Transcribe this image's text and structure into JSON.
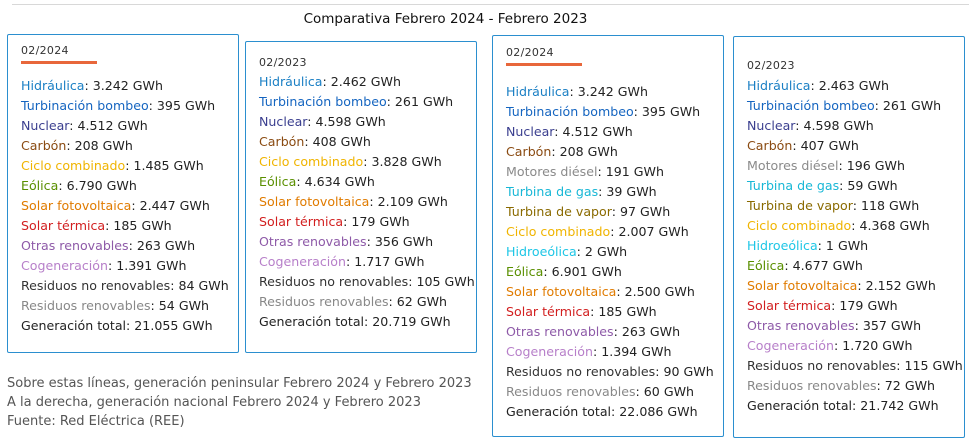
{
  "title": "Comparativa Febrero 2024 - Febrero 2023",
  "colors": {
    "Hidráulica": "#1a7fc4",
    "Turbinación bombeo": "#1565c0",
    "Nuclear": "#3b3f8f",
    "Carbón": "#8a4b12",
    "Ciclo combinado": "#f0b400",
    "Eólica": "#5a8f00",
    "Solar fotovoltaica": "#e07b00",
    "Solar térmica": "#d21f1f",
    "Otras renovables": "#8e5aa8",
    "Cogeneración": "#b77fc9",
    "Residuos no renovables": "#333333",
    "Residuos renovables": "#888888",
    "Generación total": "#222222",
    "Motores diésel": "#8a8a8a",
    "Turbina de gas": "#18b7d6",
    "Turbina de vapor": "#8a6a00",
    "Hidroeólica": "#1ec6e6"
  },
  "cards": [
    {
      "date": "02/2024",
      "underline": true,
      "rows": [
        {
          "label": "Hidráulica",
          "value": "3.242 GWh"
        },
        {
          "label": "Turbinación bombeo",
          "value": "395 GWh"
        },
        {
          "label": "Nuclear",
          "value": "4.512 GWh"
        },
        {
          "label": "Carbón",
          "value": "208 GWh"
        },
        {
          "label": "Ciclo combinado",
          "value": "1.485 GWh"
        },
        {
          "label": "Eólica",
          "value": "6.790 GWh"
        },
        {
          "label": "Solar fotovoltaica",
          "value": "2.447 GWh"
        },
        {
          "label": "Solar térmica",
          "value": "185 GWh"
        },
        {
          "label": "Otras renovables",
          "value": "263 GWh"
        },
        {
          "label": "Cogeneración",
          "value": "1.391 GWh"
        },
        {
          "label": "Residuos no renovables",
          "value": "84 GWh"
        },
        {
          "label": "Residuos renovables",
          "value": "54 GWh"
        },
        {
          "label": "Generación total",
          "value": "21.055 GWh"
        }
      ]
    },
    {
      "date": "02/2023",
      "underline": false,
      "rows": [
        {
          "label": "Hidráulica",
          "value": "2.462 GWh"
        },
        {
          "label": "Turbinación bombeo",
          "value": "261 GWh"
        },
        {
          "label": "Nuclear",
          "value": "4.598 GWh"
        },
        {
          "label": "Carbón",
          "value": "408 GWh"
        },
        {
          "label": "Ciclo combinado",
          "value": "3.828 GWh"
        },
        {
          "label": "Eólica",
          "value": "4.634 GWh"
        },
        {
          "label": "Solar fotovoltaica",
          "value": "2.109 GWh"
        },
        {
          "label": "Solar térmica",
          "value": "179 GWh"
        },
        {
          "label": "Otras renovables",
          "value": "356 GWh"
        },
        {
          "label": "Cogeneración",
          "value": "1.717 GWh"
        },
        {
          "label": "Residuos no renovables",
          "value": "105 GWh"
        },
        {
          "label": "Residuos renovables",
          "value": "62 GWh"
        },
        {
          "label": "Generación total",
          "value": "20.719 GWh"
        }
      ]
    },
    {
      "date": "02/2024",
      "underline": true,
      "rows": [
        {
          "label": "Hidráulica",
          "value": "3.242 GWh"
        },
        {
          "label": "Turbinación bombeo",
          "value": "395 GWh"
        },
        {
          "label": "Nuclear",
          "value": "4.512 GWh"
        },
        {
          "label": "Carbón",
          "value": "208 GWh"
        },
        {
          "label": "Motores diésel",
          "value": "191 GWh"
        },
        {
          "label": "Turbina de gas",
          "value": "39 GWh"
        },
        {
          "label": "Turbina de vapor",
          "value": "97 GWh"
        },
        {
          "label": "Ciclo combinado",
          "value": "2.007 GWh"
        },
        {
          "label": "Hidroeólica",
          "value": "2 GWh"
        },
        {
          "label": "Eólica",
          "value": "6.901 GWh"
        },
        {
          "label": "Solar fotovoltaica",
          "value": "2.500 GWh"
        },
        {
          "label": "Solar térmica",
          "value": "185 GWh"
        },
        {
          "label": "Otras renovables",
          "value": "263 GWh"
        },
        {
          "label": "Cogeneración",
          "value": "1.394 GWh"
        },
        {
          "label": "Residuos no renovables",
          "value": "90 GWh"
        },
        {
          "label": "Residuos renovables",
          "value": "60 GWh"
        },
        {
          "label": "Generación total",
          "value": "22.086 GWh"
        }
      ]
    },
    {
      "date": "02/2023",
      "underline": false,
      "rows": [
        {
          "label": "Hidráulica",
          "value": "2.463 GWh"
        },
        {
          "label": "Turbinación bombeo",
          "value": "261 GWh"
        },
        {
          "label": "Nuclear",
          "value": "4.598 GWh"
        },
        {
          "label": "Carbón",
          "value": "407 GWh"
        },
        {
          "label": "Motores diésel",
          "value": "196 GWh"
        },
        {
          "label": "Turbina de gas",
          "value": "59 GWh"
        },
        {
          "label": "Turbina de vapor",
          "value": "118 GWh"
        },
        {
          "label": "Ciclo combinado",
          "value": "4.368 GWh"
        },
        {
          "label": "Hidroeólica",
          "value": "1 GWh"
        },
        {
          "label": "Eólica",
          "value": "4.677 GWh"
        },
        {
          "label": "Solar fotovoltaica",
          "value": "2.152 GWh"
        },
        {
          "label": "Solar térmica",
          "value": "179 GWh"
        },
        {
          "label": "Otras renovables",
          "value": "357 GWh"
        },
        {
          "label": "Cogeneración",
          "value": "1.720 GWh"
        },
        {
          "label": "Residuos no renovables",
          "value": "115 GWh"
        },
        {
          "label": "Residuos renovables",
          "value": "72 GWh"
        },
        {
          "label": "Generación total",
          "value": "21.742 GWh"
        }
      ]
    }
  ],
  "notes": [
    "Sobre estas líneas, generación peninsular Febrero 2024 y Febrero 2023",
    "A la derecha, generación nacional Febrero 2024 y Febrero 2023",
    "Fuente: Red Eléctrica (REE)"
  ]
}
